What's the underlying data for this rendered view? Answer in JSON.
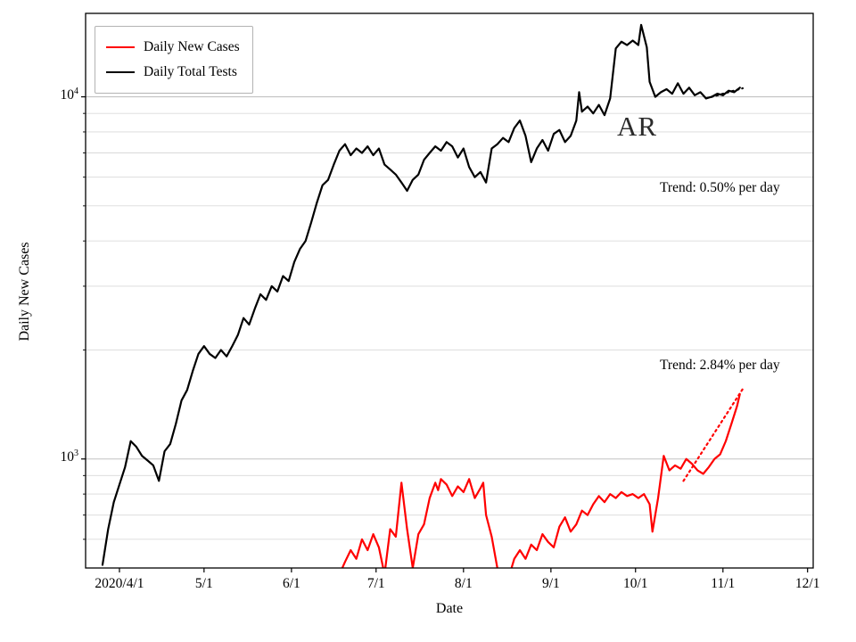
{
  "chart_data": {
    "type": "line",
    "title": "",
    "xlabel": "Date",
    "ylabel": "Daily New Cases",
    "yscale": "log",
    "x_unit": "date, year 2020, M/D",
    "xlim": [
      "3/20",
      "12/3"
    ],
    "ylim": [
      500,
      17000
    ],
    "grid": "horizontal log major+minor gridlines, no vertical",
    "x_ticks": [
      {
        "label": "2020/4/1",
        "date": "4/1"
      },
      {
        "label": "5/1",
        "date": "5/1"
      },
      {
        "label": "6/1",
        "date": "6/1"
      },
      {
        "label": "7/1",
        "date": "7/1"
      },
      {
        "label": "8/1",
        "date": "8/1"
      },
      {
        "label": "9/1",
        "date": "9/1"
      },
      {
        "label": "10/1",
        "date": "10/1"
      },
      {
        "label": "11/1",
        "date": "11/1"
      },
      {
        "label": "12/1",
        "date": "12/1"
      }
    ],
    "y_ticks": [
      {
        "value": 1000,
        "base": "10",
        "exponent": "3"
      },
      {
        "value": 10000,
        "base": "10",
        "exponent": "4"
      }
    ],
    "y_major_gridlines": [
      1000,
      10000
    ],
    "y_minor_gridlines": [
      600,
      700,
      800,
      900,
      2000,
      3000,
      4000,
      5000,
      6000,
      7000,
      8000,
      9000
    ],
    "legend": {
      "position": "upper left",
      "items": [
        {
          "label": "Daily New Cases",
          "color": "#ff0000"
        },
        {
          "label": "Daily Total Tests",
          "color": "#000000"
        }
      ]
    },
    "annotations": [
      {
        "text": "AR"
      },
      {
        "text": "Trend: 0.50% per day"
      },
      {
        "text": "Trend: 2.84% per day"
      }
    ],
    "series": [
      {
        "name": "Daily Total Tests",
        "color": "#000000",
        "style": "solid",
        "points": [
          [
            "3/26",
            510
          ],
          [
            "3/28",
            640
          ],
          [
            "3/30",
            760
          ],
          [
            "4/1",
            850
          ],
          [
            "4/3",
            950
          ],
          [
            "4/5",
            1120
          ],
          [
            "4/7",
            1080
          ],
          [
            "4/9",
            1020
          ],
          [
            "4/11",
            990
          ],
          [
            "4/13",
            960
          ],
          [
            "4/15",
            870
          ],
          [
            "4/17",
            1050
          ],
          [
            "4/19",
            1100
          ],
          [
            "4/21",
            1250
          ],
          [
            "4/23",
            1450
          ],
          [
            "4/25",
            1550
          ],
          [
            "4/27",
            1750
          ],
          [
            "4/29",
            1950
          ],
          [
            "5/1",
            2050
          ],
          [
            "5/3",
            1950
          ],
          [
            "5/5",
            1900
          ],
          [
            "5/7",
            2000
          ],
          [
            "5/9",
            1920
          ],
          [
            "5/11",
            2050
          ],
          [
            "5/13",
            2200
          ],
          [
            "5/15",
            2450
          ],
          [
            "5/17",
            2350
          ],
          [
            "5/19",
            2600
          ],
          [
            "5/21",
            2850
          ],
          [
            "5/23",
            2750
          ],
          [
            "5/25",
            3000
          ],
          [
            "5/27",
            2900
          ],
          [
            "5/29",
            3200
          ],
          [
            "5/31",
            3100
          ],
          [
            "6/2",
            3500
          ],
          [
            "6/4",
            3800
          ],
          [
            "6/6",
            4000
          ],
          [
            "6/8",
            4500
          ],
          [
            "6/10",
            5100
          ],
          [
            "6/12",
            5700
          ],
          [
            "6/14",
            5900
          ],
          [
            "6/16",
            6500
          ],
          [
            "6/18",
            7100
          ],
          [
            "6/20",
            7400
          ],
          [
            "6/22",
            6900
          ],
          [
            "6/24",
            7200
          ],
          [
            "6/26",
            7000
          ],
          [
            "6/28",
            7300
          ],
          [
            "6/30",
            6900
          ],
          [
            "7/2",
            7200
          ],
          [
            "7/4",
            6500
          ],
          [
            "7/6",
            6300
          ],
          [
            "7/8",
            6100
          ],
          [
            "7/10",
            5800
          ],
          [
            "7/12",
            5500
          ],
          [
            "7/14",
            5900
          ],
          [
            "7/16",
            6100
          ],
          [
            "7/18",
            6700
          ],
          [
            "7/20",
            7000
          ],
          [
            "7/22",
            7300
          ],
          [
            "7/24",
            7100
          ],
          [
            "7/26",
            7500
          ],
          [
            "7/28",
            7300
          ],
          [
            "7/30",
            6800
          ],
          [
            "8/1",
            7200
          ],
          [
            "8/3",
            6400
          ],
          [
            "8/5",
            6000
          ],
          [
            "8/7",
            6200
          ],
          [
            "8/9",
            5800
          ],
          [
            "8/11",
            7200
          ],
          [
            "8/13",
            7400
          ],
          [
            "8/15",
            7700
          ],
          [
            "8/17",
            7500
          ],
          [
            "8/19",
            8200
          ],
          [
            "8/21",
            8600
          ],
          [
            "8/23",
            7800
          ],
          [
            "8/25",
            6600
          ],
          [
            "8/27",
            7200
          ],
          [
            "8/29",
            7600
          ],
          [
            "8/31",
            7100
          ],
          [
            "9/2",
            7900
          ],
          [
            "9/4",
            8100
          ],
          [
            "9/6",
            7500
          ],
          [
            "9/8",
            7800
          ],
          [
            "9/10",
            8600
          ],
          [
            "9/11",
            10300
          ],
          [
            "9/12",
            9100
          ],
          [
            "9/14",
            9400
          ],
          [
            "9/16",
            9000
          ],
          [
            "9/18",
            9500
          ],
          [
            "9/20",
            8900
          ],
          [
            "9/22",
            9900
          ],
          [
            "9/24",
            13600
          ],
          [
            "9/26",
            14200
          ],
          [
            "9/28",
            13900
          ],
          [
            "9/30",
            14300
          ],
          [
            "10/2",
            13900
          ],
          [
            "10/3",
            15800
          ],
          [
            "10/5",
            13700
          ],
          [
            "10/6",
            11000
          ],
          [
            "10/8",
            10000
          ],
          [
            "10/10",
            10300
          ],
          [
            "10/12",
            10500
          ],
          [
            "10/14",
            10200
          ],
          [
            "10/16",
            10900
          ],
          [
            "10/18",
            10200
          ],
          [
            "10/20",
            10600
          ],
          [
            "10/22",
            10100
          ],
          [
            "10/24",
            10300
          ],
          [
            "10/26",
            9900
          ],
          [
            "10/28",
            10000
          ],
          [
            "10/30",
            10200
          ],
          [
            "11/1",
            10100
          ],
          [
            "11/3",
            10400
          ],
          [
            "11/5",
            10300
          ],
          [
            "11/7",
            10600
          ]
        ]
      },
      {
        "name": "Daily New Cases",
        "color": "#ff0000",
        "style": "solid",
        "points": [
          [
            "6/18",
            480
          ],
          [
            "6/20",
            520
          ],
          [
            "6/22",
            560
          ],
          [
            "6/24",
            530
          ],
          [
            "6/26",
            600
          ],
          [
            "6/28",
            560
          ],
          [
            "6/30",
            620
          ],
          [
            "7/2",
            570
          ],
          [
            "7/4",
            480
          ],
          [
            "7/6",
            640
          ],
          [
            "7/8",
            610
          ],
          [
            "7/10",
            860
          ],
          [
            "7/12",
            640
          ],
          [
            "7/14",
            500
          ],
          [
            "7/16",
            620
          ],
          [
            "7/18",
            660
          ],
          [
            "7/20",
            780
          ],
          [
            "7/22",
            860
          ],
          [
            "7/23",
            820
          ],
          [
            "7/24",
            880
          ],
          [
            "7/26",
            850
          ],
          [
            "7/28",
            790
          ],
          [
            "7/30",
            840
          ],
          [
            "8/1",
            810
          ],
          [
            "8/3",
            880
          ],
          [
            "8/5",
            780
          ],
          [
            "8/7",
            830
          ],
          [
            "8/8",
            860
          ],
          [
            "8/9",
            700
          ],
          [
            "8/11",
            610
          ],
          [
            "8/13",
            500
          ],
          [
            "8/15",
            430
          ],
          [
            "8/17",
            470
          ],
          [
            "8/19",
            530
          ],
          [
            "8/21",
            560
          ],
          [
            "8/23",
            530
          ],
          [
            "8/25",
            580
          ],
          [
            "8/27",
            560
          ],
          [
            "8/29",
            620
          ],
          [
            "8/31",
            590
          ],
          [
            "9/2",
            570
          ],
          [
            "9/4",
            650
          ],
          [
            "9/6",
            690
          ],
          [
            "9/8",
            630
          ],
          [
            "9/10",
            660
          ],
          [
            "9/12",
            720
          ],
          [
            "9/14",
            700
          ],
          [
            "9/16",
            750
          ],
          [
            "9/18",
            790
          ],
          [
            "9/20",
            760
          ],
          [
            "9/22",
            800
          ],
          [
            "9/24",
            780
          ],
          [
            "9/26",
            810
          ],
          [
            "9/28",
            790
          ],
          [
            "9/30",
            800
          ],
          [
            "10/2",
            780
          ],
          [
            "10/4",
            800
          ],
          [
            "10/6",
            750
          ],
          [
            "10/7",
            630
          ],
          [
            "10/9",
            780
          ],
          [
            "10/11",
            1020
          ],
          [
            "10/13",
            930
          ],
          [
            "10/15",
            960
          ],
          [
            "10/17",
            940
          ],
          [
            "10/19",
            1000
          ],
          [
            "10/21",
            970
          ],
          [
            "10/23",
            930
          ],
          [
            "10/25",
            910
          ],
          [
            "10/27",
            950
          ],
          [
            "10/29",
            1000
          ],
          [
            "10/31",
            1030
          ],
          [
            "11/2",
            1120
          ],
          [
            "11/4",
            1250
          ],
          [
            "11/6",
            1400
          ],
          [
            "11/7",
            1510
          ]
        ]
      }
    ],
    "trend_lines": [
      {
        "for": "Daily Total Tests",
        "label": "Trend: 0.50% per day",
        "color": "#000000",
        "style": "dotted",
        "points": [
          [
            "10/26",
            9900
          ],
          [
            "11/8",
            10560
          ]
        ]
      },
      {
        "for": "Daily New Cases",
        "label": "Trend: 2.84% per day",
        "color": "#ff0000",
        "style": "dotted",
        "points": [
          [
            "10/18",
            870
          ],
          [
            "11/8",
            1560
          ]
        ]
      }
    ]
  }
}
